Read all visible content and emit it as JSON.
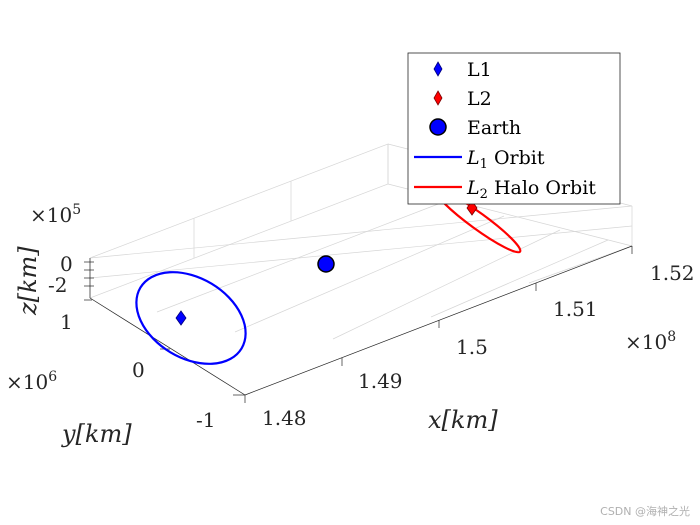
{
  "chart_data": {
    "type": "scatter3d",
    "axes": {
      "x": {
        "label": "x[km]",
        "ticks": [
          "1.48",
          "1.49",
          "1.5",
          "1.51",
          "1.52"
        ],
        "multiplier": "×10",
        "exponent": "8",
        "range": [
          1.475,
          1.525
        ]
      },
      "y": {
        "label": "y[km]",
        "ticks": [
          "-1",
          "0",
          "1"
        ],
        "multiplier": "×10",
        "exponent": "6",
        "range": [
          -1.2,
          1.2
        ]
      },
      "z": {
        "label": "z[km]",
        "ticks": [
          "-2",
          "0"
        ],
        "multiplier": "×10",
        "exponent": "5",
        "range": [
          -4,
          2
        ]
      }
    },
    "grid": true,
    "legend_position": "top-right",
    "series": [
      {
        "name": "L1",
        "kind": "marker",
        "marker": "diamond",
        "color": "#0000ff",
        "x": 1.4849,
        "y": 0.0,
        "z": 0.0
      },
      {
        "name": "L2",
        "kind": "marker",
        "marker": "diamond",
        "color": "#ff0000",
        "x": 1.5151,
        "y": 0.0,
        "z": 0.0
      },
      {
        "name": "Earth",
        "kind": "marker",
        "marker": "circle",
        "color": "#0000ff",
        "x": 1.496,
        "y": 0.0,
        "z": 0.0
      },
      {
        "name": "L_1 Orbit",
        "kind": "line",
        "color": "#0000ff",
        "center": [
          1.4849,
          0.0,
          0.0
        ],
        "half_extent_x": 0.0035,
        "half_extent_y": 0.9,
        "half_extent_z": 0.3
      },
      {
        "name": "L_2 Halo Orbit",
        "kind": "line",
        "color": "#ff0000",
        "center": [
          1.5151,
          0.0,
          0.0
        ],
        "half_extent_x": 0.0012,
        "half_extent_y": 0.45,
        "half_extent_z": 0.6
      }
    ],
    "legend": [
      {
        "label": "L1",
        "sub": ""
      },
      {
        "label": "L2",
        "sub": ""
      },
      {
        "label": "Earth",
        "sub": ""
      },
      {
        "label": "L",
        "sub": "1",
        "rest": " Orbit"
      },
      {
        "label": "L",
        "sub": "2",
        "rest": " Halo Orbit"
      }
    ]
  },
  "watermark": "CSDN @海神之光"
}
